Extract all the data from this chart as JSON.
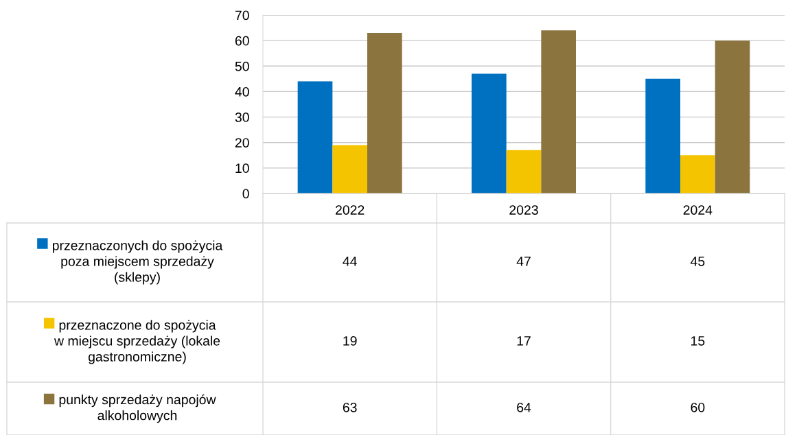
{
  "chart_data": {
    "type": "bar",
    "categories": [
      "2022",
      "2023",
      "2024"
    ],
    "series": [
      {
        "name": "przeznaczonych do spożycia\npoza miejscem sprzedaży\n(sklepy)",
        "color": "#0070c0",
        "values": [
          44,
          47,
          45
        ]
      },
      {
        "name": "przeznaczone do spożycia\nw miejscu sprzedaży (lokale\ngastronomiczne)",
        "color": "#f5c400",
        "values": [
          19,
          17,
          15
        ]
      },
      {
        "name": "punkty sprzedaży napojów\nalkoholowych",
        "color": "#8b743e",
        "values": [
          63,
          64,
          60
        ]
      }
    ],
    "ylim": [
      0,
      70
    ],
    "yticks": [
      0,
      10,
      20,
      30,
      40,
      50,
      60,
      70
    ],
    "grid": "y",
    "data_labels": true,
    "legend": "bottom"
  }
}
